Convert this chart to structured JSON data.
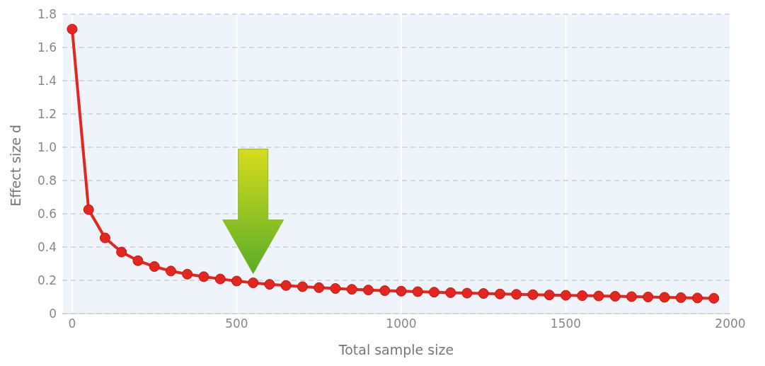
{
  "chart_data": {
    "type": "line",
    "xlabel": "Total sample size",
    "ylabel": "Effect size d",
    "x": [
      0,
      50,
      100,
      150,
      200,
      250,
      300,
      350,
      400,
      450,
      500,
      550,
      600,
      650,
      700,
      750,
      800,
      850,
      900,
      950,
      1000,
      1050,
      1100,
      1150,
      1200,
      1250,
      1300,
      1350,
      1400,
      1450,
      1500,
      1550,
      1600,
      1650,
      1700,
      1750,
      1800,
      1850,
      1900,
      1950
    ],
    "series": [
      {
        "color": "#e3261e",
        "values": [
          1.71,
          0.625,
          0.455,
          0.37,
          0.318,
          0.283,
          0.256,
          0.237,
          0.222,
          0.208,
          0.196,
          0.185,
          0.176,
          0.169,
          0.162,
          0.156,
          0.151,
          0.146,
          0.142,
          0.138,
          0.135,
          0.132,
          0.129,
          0.126,
          0.123,
          0.121,
          0.118,
          0.116,
          0.114,
          0.112,
          0.11,
          0.108,
          0.106,
          0.104,
          0.102,
          0.1,
          0.098,
          0.096,
          0.094,
          0.092
        ]
      }
    ],
    "xlim": [
      -30,
      2000
    ],
    "xticks": [
      0,
      500,
      1000,
      1500,
      2000
    ],
    "ylim": [
      0,
      1.8
    ],
    "yticks": [
      0,
      0.2,
      0.4,
      0.6,
      0.8,
      {
        "value": 1,
        "label": "1.0"
      },
      1.2,
      1.4,
      1.6,
      1.8
    ],
    "grid": true,
    "marker": "circle",
    "line_style": "solid"
  }
}
